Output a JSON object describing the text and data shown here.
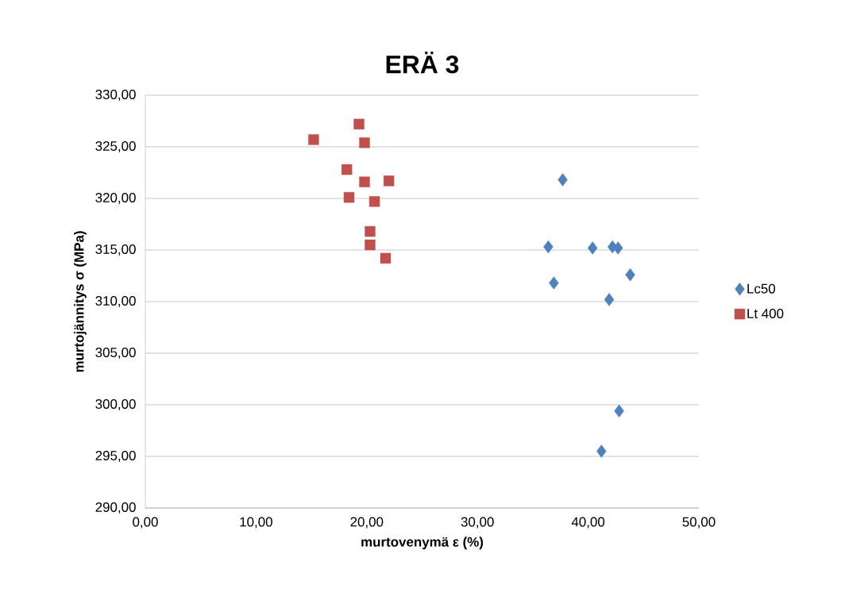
{
  "chart_data": {
    "type": "scatter",
    "title": "ERÄ 3",
    "xlabel": "murtovenymä ε (%)",
    "ylabel": "murtojännitys σ (MPa)",
    "xlim": [
      0,
      50
    ],
    "ylim": [
      290,
      330
    ],
    "xticks": [
      {
        "value": 0,
        "label": "0,00"
      },
      {
        "value": 10,
        "label": "10,00"
      },
      {
        "value": 20,
        "label": "20,00"
      },
      {
        "value": 30,
        "label": "30,00"
      },
      {
        "value": 40,
        "label": "40,00"
      },
      {
        "value": 50,
        "label": "50,00"
      }
    ],
    "yticks": [
      {
        "value": 290,
        "label": "290,00"
      },
      {
        "value": 295,
        "label": "295,00"
      },
      {
        "value": 300,
        "label": "300,00"
      },
      {
        "value": 305,
        "label": "305,00"
      },
      {
        "value": 310,
        "label": "310,00"
      },
      {
        "value": 315,
        "label": "315,00"
      },
      {
        "value": 320,
        "label": "320,00"
      },
      {
        "value": 325,
        "label": "325,00"
      },
      {
        "value": 330,
        "label": "330,00"
      }
    ],
    "grid": "y",
    "legend": "right",
    "series": [
      {
        "name": "Lc50",
        "color": "#4f81bd",
        "marker": "diamond",
        "x": [
          36.4,
          37.7,
          36.9,
          40.4,
          42.2,
          42.7,
          43.8,
          41.9,
          42.8,
          41.2
        ],
        "values": [
          315.3,
          321.8,
          311.8,
          315.2,
          315.3,
          315.2,
          312.6,
          310.2,
          299.4,
          295.5
        ]
      },
      {
        "name": "Lt 400",
        "color": "#c0504d",
        "marker": "square",
        "x": [
          15.2,
          19.3,
          19.8,
          18.2,
          19.8,
          22.0,
          18.4,
          20.7,
          20.3,
          20.3,
          21.7
        ],
        "values": [
          325.7,
          327.2,
          325.4,
          322.8,
          321.6,
          321.7,
          320.1,
          319.7,
          316.8,
          315.5,
          314.2
        ]
      }
    ]
  }
}
